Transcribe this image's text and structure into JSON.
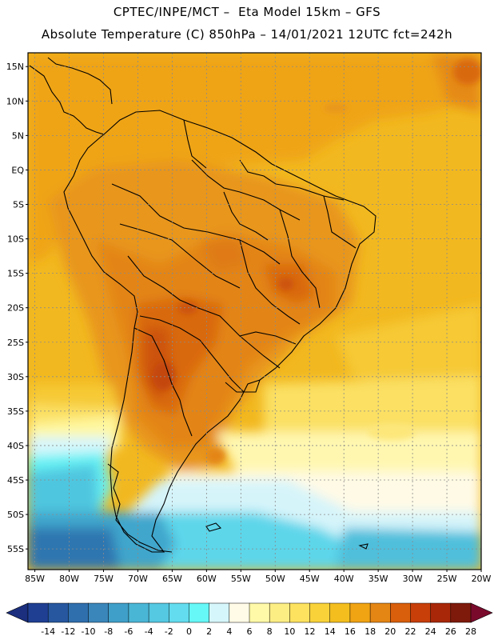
{
  "header": {
    "line1": "CPTEC/INPE/MCT –  Eta Model 15km – GFS",
    "line2": "Absolute Temperature (C) 850hPa – 14/01/2021 12UTC fct=242h"
  },
  "map": {
    "lon_range": [
      -86,
      -20
    ],
    "lat_range": [
      -58,
      17
    ],
    "lat_ticks": [
      "15N",
      "10N",
      "5N",
      "EQ",
      "5S",
      "10S",
      "15S",
      "20S",
      "25S",
      "30S",
      "35S",
      "40S",
      "45S",
      "50S",
      "55S"
    ],
    "lon_ticks": [
      "85W",
      "80W",
      "75W",
      "70W",
      "65W",
      "60W",
      "55W",
      "50W",
      "45W",
      "40W",
      "35W",
      "30W",
      "25W",
      "20W"
    ]
  },
  "colorbar": {
    "labels": [
      "-14",
      "-12",
      "-10",
      "-8",
      "-6",
      "-4",
      "-2",
      "0",
      "2",
      "4",
      "6",
      "8",
      "10",
      "12",
      "14",
      "16",
      "18",
      "20",
      "22",
      "24",
      "26",
      "28"
    ],
    "colors": [
      "#1f3f93",
      "#26579f",
      "#2f6fae",
      "#3a86ba",
      "#3f9fc8",
      "#4ab6d6",
      "#55c8e2",
      "#62dcee",
      "#66f7f7",
      "#d5f6fb",
      "#fffbe6",
      "#fff9a8",
      "#fdee84",
      "#fde25f",
      "#f9d239",
      "#f3be1e",
      "#f0a313",
      "#e48614",
      "#d95f0c",
      "#c83f0a",
      "#a82708",
      "#7e1a0c"
    ],
    "under_color": "#1b2f7e",
    "over_color": "#7a0a2c"
  },
  "colors": {
    "land_outline": "#000000",
    "grid": "#8a8a8a"
  }
}
